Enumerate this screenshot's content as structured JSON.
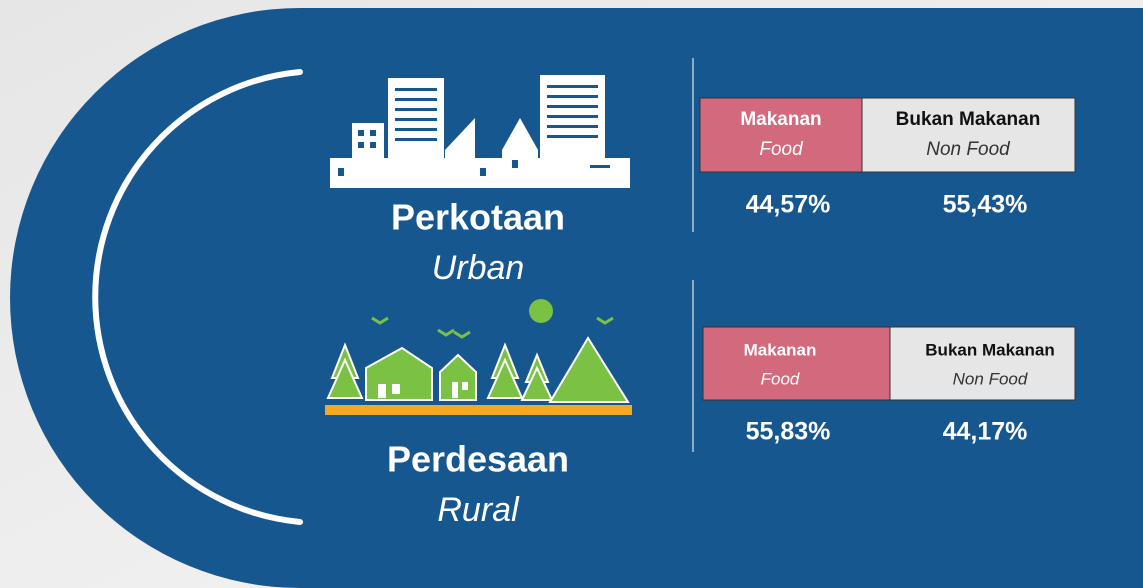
{
  "urban": {
    "title": "Perkotaan",
    "subtitle": "Urban",
    "food_label": "Makanan",
    "food_sub": "Food",
    "nonfood_label": "Bukan Makanan",
    "nonfood_sub": "Non Food",
    "food_value": "44,57%",
    "nonfood_value": "55,43%"
  },
  "rural": {
    "title": "Perdesaan",
    "subtitle": "Rural",
    "food_label": "Makanan",
    "food_sub": "Food",
    "nonfood_label": "Bukan Makanan",
    "nonfood_sub": "Non Food",
    "food_value": "55,83%",
    "nonfood_value": "44,17%"
  }
}
